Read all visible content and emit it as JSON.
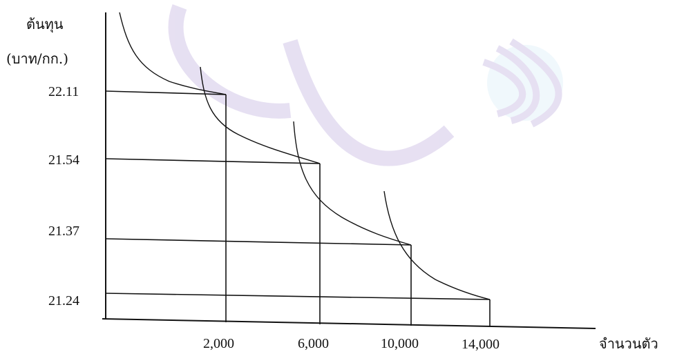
{
  "chart_data": {
    "type": "line",
    "title": "",
    "ylabel": "ต้นทุน",
    "ylabel_unit": "(บาท/กก.)",
    "xlabel": "จำนวนตัว",
    "x_ticks": [
      "2,000",
      "6,000",
      "10,000",
      "14,000"
    ],
    "y_ticks": [
      "22.11",
      "21.54",
      "21.37",
      "21.24"
    ],
    "steps": [
      {
        "x": 2000,
        "y": 22.11
      },
      {
        "x": 6000,
        "y": 21.54
      },
      {
        "x": 10000,
        "y": 21.37
      },
      {
        "x": 14000,
        "y": 21.24
      }
    ],
    "grid": false,
    "legend": "none",
    "colors": {
      "line": "#111111",
      "watermark": "#cbbfe0"
    }
  }
}
